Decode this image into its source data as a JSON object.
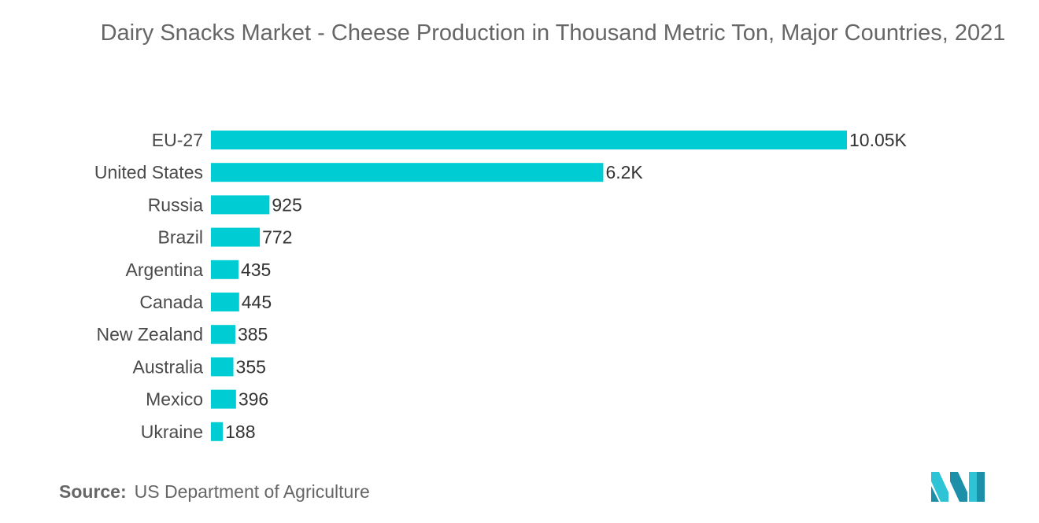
{
  "title": "Dairy Snacks Market - Cheese Production in Thousand Metric Ton, Major Countries, 2021",
  "source": {
    "label": "Source:",
    "text": "US Department of Agriculture"
  },
  "logo": {
    "icon": "mordor-intelligence-logo-icon",
    "colors": [
      "#1e8fa8",
      "#2ec4d6"
    ]
  },
  "colors": {
    "bar": "#00cdd3",
    "text": "#4a4a4a"
  },
  "chart_data": {
    "type": "bar",
    "orientation": "horizontal",
    "title": "Dairy Snacks Market - Cheese Production in Thousand Metric Ton, Major Countries, 2021",
    "categories": [
      "EU-27",
      "United States",
      "Russia",
      "Brazil",
      "Argentina",
      "Canada",
      "New Zealand",
      "Australia",
      "Mexico",
      "Ukraine"
    ],
    "values": [
      10050,
      6200,
      925,
      772,
      435,
      445,
      385,
      355,
      396,
      188
    ],
    "data_labels": [
      "10.05K",
      "6.2K",
      "925",
      "772",
      "435",
      "445",
      "385",
      "355",
      "396",
      "188"
    ],
    "xlim": [
      0,
      10050
    ],
    "grid": false,
    "legend": "none"
  }
}
